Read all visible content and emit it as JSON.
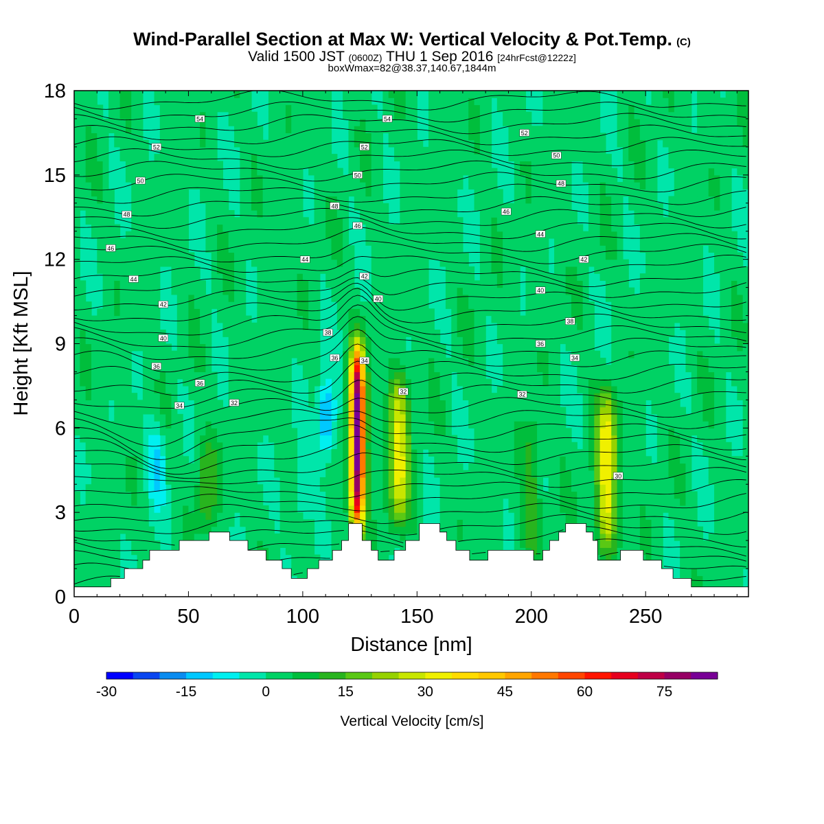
{
  "title": {
    "main": "Wind-Parallel Section at Max W: Vertical Velocity & Pot.Temp.",
    "copyright": "(C)",
    "valid_a": "Valid 1500 JST ",
    "valid_z": "(0600Z)",
    "valid_b": " THU 1 Sep 2016 ",
    "fcst": "[24hrFcst@1222z]",
    "box": "boxWmax=82@38.37,140.67,1844m"
  },
  "chart_data": {
    "type": "heatmap",
    "xlabel": "Distance [nm]",
    "ylabel": "Height [Kft MSL]",
    "xlim": [
      0,
      295
    ],
    "ylim": [
      0,
      18
    ],
    "xticks": [
      0,
      50,
      100,
      150,
      200,
      250
    ],
    "yticks": [
      0,
      3,
      6,
      9,
      12,
      15,
      18
    ],
    "colorbar": {
      "label": "Vertical Velocity [cm/s]",
      "min": -30,
      "max": 85,
      "step": 5,
      "tick_values": [
        -30,
        -15,
        0,
        15,
        30,
        45,
        60,
        75
      ],
      "tick_labels": [
        "-30",
        "-15",
        "0",
        "15",
        "30",
        "45",
        "60",
        "75"
      ],
      "colors": [
        "#0000ff",
        "#0a46f0",
        "#0a8cf0",
        "#00c8ff",
        "#00f0f0",
        "#00e6aa",
        "#00d264",
        "#00be3c",
        "#28b41e",
        "#5ac814",
        "#96d200",
        "#c8e600",
        "#f0f000",
        "#ffdc00",
        "#ffc800",
        "#ffa500",
        "#ff7800",
        "#ff4600",
        "#ff1400",
        "#e6001e",
        "#be0046",
        "#960064",
        "#780096"
      ]
    },
    "background_colors": [
      "#00e6aa",
      "#00d264"
    ],
    "updraft_cores": [
      {
        "x": 124,
        "peak": 82,
        "zbase": 2.0,
        "ztop": 9.2
      },
      {
        "x": 142,
        "peak": 28,
        "zbase": 2.2,
        "ztop": 8.3
      },
      {
        "x": 233,
        "peak": 32,
        "zbase": 1.3,
        "ztop": 7.5
      },
      {
        "x": 200,
        "peak": 12,
        "zbase": 1.5,
        "ztop": 6.5
      },
      {
        "x": 58,
        "peak": 12,
        "zbase": 2.2,
        "ztop": 6.0
      }
    ],
    "downdraft_cores": [
      {
        "x": 110,
        "peak": -22,
        "z": 6.3
      },
      {
        "x": 36,
        "peak": -12,
        "z": 4.8
      },
      {
        "x": 99,
        "peak": -8,
        "z": 3.6
      }
    ],
    "terrain_kft": [
      [
        0,
        0.35
      ],
      [
        16,
        0.35
      ],
      [
        16,
        0.65
      ],
      [
        22,
        0.65
      ],
      [
        22,
        1.0
      ],
      [
        30,
        1.0
      ],
      [
        30,
        1.3
      ],
      [
        33,
        1.3
      ],
      [
        33,
        1.65
      ],
      [
        46,
        1.65
      ],
      [
        46,
        2.0
      ],
      [
        59,
        2.0
      ],
      [
        59,
        2.3
      ],
      [
        68,
        2.3
      ],
      [
        68,
        2.0
      ],
      [
        76,
        2.0
      ],
      [
        76,
        1.65
      ],
      [
        84,
        1.65
      ],
      [
        84,
        1.3
      ],
      [
        91,
        1.3
      ],
      [
        91,
        1.0
      ],
      [
        95,
        1.0
      ],
      [
        95,
        0.65
      ],
      [
        102,
        0.65
      ],
      [
        102,
        1.0
      ],
      [
        107,
        1.0
      ],
      [
        107,
        1.3
      ],
      [
        113,
        1.3
      ],
      [
        113,
        1.65
      ],
      [
        117,
        1.65
      ],
      [
        117,
        2.0
      ],
      [
        120,
        2.0
      ],
      [
        120,
        2.6
      ],
      [
        126,
        2.6
      ],
      [
        126,
        2.0
      ],
      [
        130,
        2.0
      ],
      [
        130,
        1.65
      ],
      [
        133,
        1.65
      ],
      [
        133,
        1.3
      ],
      [
        140,
        1.3
      ],
      [
        140,
        1.65
      ],
      [
        145,
        1.65
      ],
      [
        145,
        2.0
      ],
      [
        151,
        2.0
      ],
      [
        151,
        2.6
      ],
      [
        160,
        2.6
      ],
      [
        160,
        2.3
      ],
      [
        163,
        2.3
      ],
      [
        163,
        2.0
      ],
      [
        167,
        2.0
      ],
      [
        167,
        1.65
      ],
      [
        173,
        1.65
      ],
      [
        173,
        1.3
      ],
      [
        181,
        1.3
      ],
      [
        181,
        1.65
      ],
      [
        201,
        1.65
      ],
      [
        201,
        1.3
      ],
      [
        205,
        1.3
      ],
      [
        205,
        1.65
      ],
      [
        208,
        1.65
      ],
      [
        208,
        2.0
      ],
      [
        212,
        2.0
      ],
      [
        212,
        2.3
      ],
      [
        215,
        2.3
      ],
      [
        215,
        2.6
      ],
      [
        224,
        2.6
      ],
      [
        224,
        2.3
      ],
      [
        227,
        2.3
      ],
      [
        227,
        2.0
      ],
      [
        229,
        2.0
      ],
      [
        229,
        1.3
      ],
      [
        239,
        1.3
      ],
      [
        239,
        1.65
      ],
      [
        249,
        1.65
      ],
      [
        249,
        1.3
      ],
      [
        257,
        1.3
      ],
      [
        257,
        1.0
      ],
      [
        262,
        1.0
      ],
      [
        262,
        0.65
      ],
      [
        270,
        0.65
      ],
      [
        270,
        0.35
      ],
      [
        295,
        0.35
      ]
    ],
    "theta_contours": [
      {
        "label": "30",
        "x": 238,
        "z": 4.3
      },
      {
        "label": "32",
        "x": 70,
        "z": 6.9
      },
      {
        "label": "32",
        "x": 144,
        "z": 7.3
      },
      {
        "label": "32",
        "x": 196,
        "z": 7.2
      },
      {
        "label": "34",
        "x": 46,
        "z": 6.8
      },
      {
        "label": "34",
        "x": 127,
        "z": 8.4
      },
      {
        "label": "34",
        "x": 219,
        "z": 8.5
      },
      {
        "label": "36",
        "x": 36,
        "z": 8.2
      },
      {
        "label": "36",
        "x": 55,
        "z": 7.6
      },
      {
        "label": "36",
        "x": 114,
        "z": 8.5
      },
      {
        "label": "36",
        "x": 204,
        "z": 9.0
      },
      {
        "label": "38",
        "x": 111,
        "z": 9.4
      },
      {
        "label": "38",
        "x": 217,
        "z": 9.8
      },
      {
        "label": "40",
        "x": 39,
        "z": 9.2
      },
      {
        "label": "40",
        "x": 133,
        "z": 10.6
      },
      {
        "label": "40",
        "x": 204,
        "z": 10.9
      },
      {
        "label": "42",
        "x": 39,
        "z": 10.4
      },
      {
        "label": "42",
        "x": 127,
        "z": 11.4
      },
      {
        "label": "42",
        "x": 223,
        "z": 12.0
      },
      {
        "label": "44",
        "x": 26,
        "z": 11.3
      },
      {
        "label": "44",
        "x": 101,
        "z": 12.0
      },
      {
        "label": "44",
        "x": 204,
        "z": 12.9
      },
      {
        "label": "46",
        "x": 16,
        "z": 12.4
      },
      {
        "label": "46",
        "x": 124,
        "z": 13.2
      },
      {
        "label": "46",
        "x": 189,
        "z": 13.7
      },
      {
        "label": "48",
        "x": 23,
        "z": 13.6
      },
      {
        "label": "48",
        "x": 114,
        "z": 13.9
      },
      {
        "label": "48",
        "x": 213,
        "z": 14.7
      },
      {
        "label": "50",
        "x": 29,
        "z": 14.8
      },
      {
        "label": "50",
        "x": 124,
        "z": 15.0
      },
      {
        "label": "50",
        "x": 211,
        "z": 15.7
      },
      {
        "label": "52",
        "x": 36,
        "z": 16.0
      },
      {
        "label": "52",
        "x": 127,
        "z": 16.0
      },
      {
        "label": "52",
        "x": 197,
        "z": 16.5
      },
      {
        "label": "54",
        "x": 55,
        "z": 17.0
      },
      {
        "label": "54",
        "x": 137,
        "z": 17.0
      }
    ]
  }
}
